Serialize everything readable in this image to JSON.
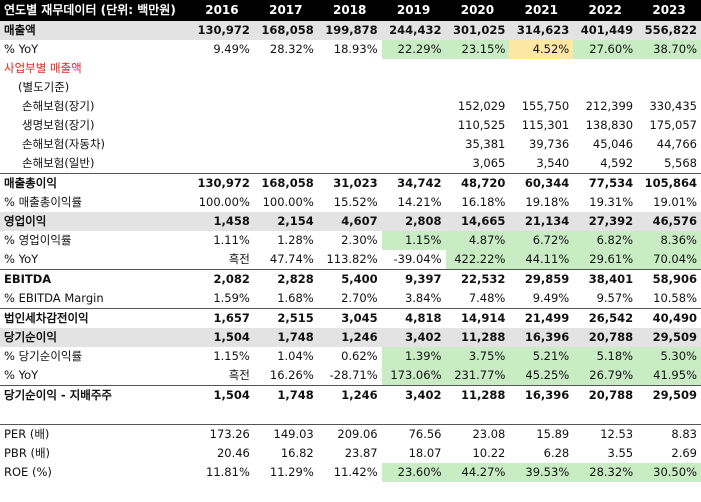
{
  "header": [
    "연도별 재무데이터 (단위: 백만원)",
    "2016",
    "2017",
    "2018",
    "2019",
    "2020",
    "2021",
    "2022",
    "2023"
  ],
  "rows": [
    {
      "label": "매출액",
      "cls": "bold shade",
      "vals": [
        "130,972",
        "168,058",
        "199,878",
        "244,432",
        "301,025",
        "314,623",
        "401,449",
        "556,822"
      ],
      "hl": [
        "",
        "",
        "",
        "",
        "",
        "",
        "",
        ""
      ]
    },
    {
      "label": "% YoY",
      "cls": "",
      "vals": [
        "9.49%",
        "28.32%",
        "18.93%",
        "22.29%",
        "23.15%",
        "4.52%",
        "27.60%",
        "38.70%"
      ],
      "hl": [
        "",
        "",
        "",
        "g",
        "g",
        "y",
        "g",
        "g"
      ]
    },
    {
      "label": "사업부별 매출액",
      "cls": "red",
      "vals": [
        "",
        "",
        "",
        "",
        "",
        "",
        "",
        ""
      ],
      "hl": [
        "",
        "",
        "",
        "",
        "",
        "",
        "",
        ""
      ]
    },
    {
      "label": "(별도기준)",
      "cls": "indent",
      "vals": [
        "",
        "",
        "",
        "",
        "",
        "",
        "",
        ""
      ],
      "hl": [
        "",
        "",
        "",
        "",
        "",
        "",
        "",
        ""
      ]
    },
    {
      "label": "손해보험(장기)",
      "cls": "indent2",
      "vals": [
        "",
        "",
        "",
        "",
        "152,029",
        "155,750",
        "212,399",
        "330,435"
      ],
      "hl": [
        "",
        "",
        "",
        "",
        "",
        "",
        "",
        ""
      ]
    },
    {
      "label": "생명보험(장기)",
      "cls": "indent2",
      "vals": [
        "",
        "",
        "",
        "",
        "110,525",
        "115,301",
        "138,830",
        "175,057"
      ],
      "hl": [
        "",
        "",
        "",
        "",
        "",
        "",
        "",
        ""
      ]
    },
    {
      "label": "손해보험(자동차)",
      "cls": "indent2",
      "vals": [
        "",
        "",
        "",
        "",
        "35,381",
        "39,736",
        "45,046",
        "44,766"
      ],
      "hl": [
        "",
        "",
        "",
        "",
        "",
        "",
        "",
        ""
      ]
    },
    {
      "label": "손해보험(일반)",
      "cls": "indent2",
      "vals": [
        "",
        "",
        "",
        "",
        "3,065",
        "3,540",
        "4,592",
        "5,568"
      ],
      "hl": [
        "",
        "",
        "",
        "",
        "",
        "",
        "",
        ""
      ]
    },
    {
      "label": "매출총이익",
      "cls": "bold topline",
      "vals": [
        "130,972",
        "168,058",
        "31,023",
        "34,742",
        "48,720",
        "60,344",
        "77,534",
        "105,864"
      ],
      "hl": [
        "",
        "",
        "",
        "",
        "",
        "",
        "",
        ""
      ]
    },
    {
      "label": "% 매출총이익률",
      "cls": "",
      "vals": [
        "100.00%",
        "100.00%",
        "15.52%",
        "14.21%",
        "16.18%",
        "19.18%",
        "19.31%",
        "19.01%"
      ],
      "hl": [
        "",
        "",
        "",
        "",
        "",
        "",
        "",
        ""
      ]
    },
    {
      "label": "영업이익",
      "cls": "bold shade",
      "vals": [
        "1,458",
        "2,154",
        "4,607",
        "2,808",
        "14,665",
        "21,134",
        "27,392",
        "46,576"
      ],
      "hl": [
        "",
        "",
        "",
        "",
        "",
        "",
        "",
        ""
      ]
    },
    {
      "label": "% 영업이익률",
      "cls": "",
      "vals": [
        "1.11%",
        "1.28%",
        "2.30%",
        "1.15%",
        "4.87%",
        "6.72%",
        "6.82%",
        "8.36%"
      ],
      "hl": [
        "",
        "",
        "",
        "g",
        "g",
        "g",
        "g",
        "g"
      ]
    },
    {
      "label": "% YoY",
      "cls": "",
      "vals": [
        "흑전",
        "47.74%",
        "113.82%",
        "-39.04%",
        "422.22%",
        "44.11%",
        "29.61%",
        "70.04%"
      ],
      "hl": [
        "",
        "",
        "",
        "",
        "g",
        "g",
        "g",
        "g"
      ]
    },
    {
      "label": "EBITDA",
      "cls": "bold topline",
      "vals": [
        "2,082",
        "2,828",
        "5,400",
        "9,397",
        "22,532",
        "29,859",
        "38,401",
        "58,906"
      ],
      "hl": [
        "",
        "",
        "",
        "",
        "",
        "",
        "",
        ""
      ]
    },
    {
      "label": "% EBITDA Margin",
      "cls": "",
      "vals": [
        "1.59%",
        "1.68%",
        "2.70%",
        "3.84%",
        "7.48%",
        "9.49%",
        "9.57%",
        "10.58%"
      ],
      "hl": [
        "",
        "",
        "",
        "",
        "",
        "",
        "",
        ""
      ]
    },
    {
      "label": "법인세차감전이익",
      "cls": "bold topline",
      "vals": [
        "1,657",
        "2,515",
        "3,045",
        "4,818",
        "14,914",
        "21,499",
        "26,542",
        "40,490"
      ],
      "hl": [
        "",
        "",
        "",
        "",
        "",
        "",
        "",
        ""
      ]
    },
    {
      "label": "당기순이익",
      "cls": "bold shade",
      "vals": [
        "1,504",
        "1,748",
        "1,246",
        "3,402",
        "11,288",
        "16,396",
        "20,788",
        "29,509"
      ],
      "hl": [
        "",
        "",
        "",
        "",
        "",
        "",
        "",
        ""
      ]
    },
    {
      "label": "% 당기순이익률",
      "cls": "",
      "vals": [
        "1.15%",
        "1.04%",
        "0.62%",
        "1.39%",
        "3.75%",
        "5.21%",
        "5.18%",
        "5.30%"
      ],
      "hl": [
        "",
        "",
        "",
        "g",
        "g",
        "g",
        "g",
        "g"
      ]
    },
    {
      "label": "% YoY",
      "cls": "",
      "vals": [
        "흑전",
        "16.26%",
        "-28.71%",
        "173.06%",
        "231.77%",
        "45.25%",
        "26.79%",
        "41.95%"
      ],
      "hl": [
        "",
        "",
        "",
        "g",
        "g",
        "g",
        "g",
        "g"
      ]
    },
    {
      "label": "당기순이익 - 지배주주",
      "cls": "bold topline",
      "vals": [
        "1,504",
        "1,748",
        "1,246",
        "3,402",
        "11,288",
        "16,396",
        "20,788",
        "29,509"
      ],
      "hl": [
        "",
        "",
        "",
        "",
        "",
        "",
        "",
        ""
      ]
    },
    {
      "label": "",
      "cls": "blank",
      "vals": [
        "",
        "",
        "",
        "",
        "",
        "",
        "",
        ""
      ],
      "hl": [
        "",
        "",
        "",
        "",
        "",
        "",
        "",
        ""
      ]
    },
    {
      "label": "PER (배)",
      "cls": "topline",
      "vals": [
        "173.26",
        "149.03",
        "209.06",
        "76.56",
        "23.08",
        "15.89",
        "12.53",
        "8.83"
      ],
      "hl": [
        "",
        "",
        "",
        "",
        "",
        "",
        "",
        ""
      ]
    },
    {
      "label": "PBR (배)",
      "cls": "",
      "vals": [
        "20.46",
        "16.82",
        "23.87",
        "18.07",
        "10.22",
        "6.28",
        "3.55",
        "2.69"
      ],
      "hl": [
        "",
        "",
        "",
        "",
        "",
        "",
        "",
        ""
      ]
    },
    {
      "label": "ROE (%)",
      "cls": "",
      "vals": [
        "11.81%",
        "11.29%",
        "11.42%",
        "23.60%",
        "44.27%",
        "39.53%",
        "28.32%",
        "30.50%"
      ],
      "hl": [
        "",
        "",
        "",
        "g",
        "g",
        "g",
        "g",
        "g"
      ]
    }
  ]
}
